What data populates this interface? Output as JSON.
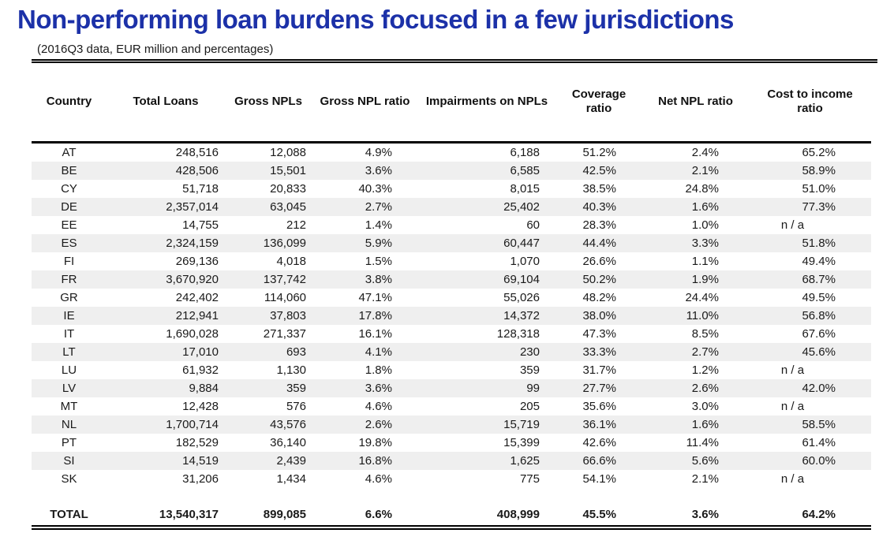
{
  "title": "Non-performing loan burdens focused in a few jurisdictions",
  "subtitle": "(2016Q3 data, EUR million and percentages)",
  "colors": {
    "title_blue": "#1c31a8",
    "stripe_gray": "#efefef",
    "rule_black": "#000000",
    "text_black": "#1a1a1a"
  },
  "chart_data": {
    "type": "table",
    "title": "Non-performing loan burdens focused in a few jurisdictions",
    "subtitle": "(2016Q3 data, EUR million and percentages)",
    "columns": [
      "Country",
      "Total Loans",
      "Gross NPLs",
      "Gross NPL ratio",
      "Impairments on NPLs",
      "Coverage ratio",
      "Net NPL ratio",
      "Cost to income ratio"
    ],
    "col_keys": [
      "country",
      "total-loans",
      "gross-npls",
      "gross-npl-ratio",
      "impairments-on-npls",
      "coverage-ratio",
      "net-npl-ratio",
      "cost-to-income-ratio"
    ],
    "rows": [
      [
        "AT",
        "248,516",
        "12,088",
        "4.9%",
        "6,188",
        "51.2%",
        "2.4%",
        "65.2%"
      ],
      [
        "BE",
        "428,506",
        "15,501",
        "3.6%",
        "6,585",
        "42.5%",
        "2.1%",
        "58.9%"
      ],
      [
        "CY",
        "51,718",
        "20,833",
        "40.3%",
        "8,015",
        "38.5%",
        "24.8%",
        "51.0%"
      ],
      [
        "DE",
        "2,357,014",
        "63,045",
        "2.7%",
        "25,402",
        "40.3%",
        "1.6%",
        "77.3%"
      ],
      [
        "EE",
        "14,755",
        "212",
        "1.4%",
        "60",
        "28.3%",
        "1.0%",
        "n / a"
      ],
      [
        "ES",
        "2,324,159",
        "136,099",
        "5.9%",
        "60,447",
        "44.4%",
        "3.3%",
        "51.8%"
      ],
      [
        "FI",
        "269,136",
        "4,018",
        "1.5%",
        "1,070",
        "26.6%",
        "1.1%",
        "49.4%"
      ],
      [
        "FR",
        "3,670,920",
        "137,742",
        "3.8%",
        "69,104",
        "50.2%",
        "1.9%",
        "68.7%"
      ],
      [
        "GR",
        "242,402",
        "114,060",
        "47.1%",
        "55,026",
        "48.2%",
        "24.4%",
        "49.5%"
      ],
      [
        "IE",
        "212,941",
        "37,803",
        "17.8%",
        "14,372",
        "38.0%",
        "11.0%",
        "56.8%"
      ],
      [
        "IT",
        "1,690,028",
        "271,337",
        "16.1%",
        "128,318",
        "47.3%",
        "8.5%",
        "67.6%"
      ],
      [
        "LT",
        "17,010",
        "693",
        "4.1%",
        "230",
        "33.3%",
        "2.7%",
        "45.6%"
      ],
      [
        "LU",
        "61,932",
        "1,130",
        "1.8%",
        "359",
        "31.7%",
        "1.2%",
        "n / a"
      ],
      [
        "LV",
        "9,884",
        "359",
        "3.6%",
        "99",
        "27.7%",
        "2.6%",
        "42.0%"
      ],
      [
        "MT",
        "12,428",
        "576",
        "4.6%",
        "205",
        "35.6%",
        "3.0%",
        "n / a"
      ],
      [
        "NL",
        "1,700,714",
        "43,576",
        "2.6%",
        "15,719",
        "36.1%",
        "1.6%",
        "58.5%"
      ],
      [
        "PT",
        "182,529",
        "36,140",
        "19.8%",
        "15,399",
        "42.6%",
        "11.4%",
        "61.4%"
      ],
      [
        "SI",
        "14,519",
        "2,439",
        "16.8%",
        "1,625",
        "66.6%",
        "5.6%",
        "60.0%"
      ],
      [
        "SK",
        "31,206",
        "1,434",
        "4.6%",
        "775",
        "54.1%",
        "2.1%",
        "n / a"
      ]
    ],
    "total_label": "TOTAL",
    "total": [
      "13,540,317",
      "899,085",
      "6.6%",
      "408,999",
      "45.5%",
      "3.6%",
      "64.2%"
    ]
  }
}
